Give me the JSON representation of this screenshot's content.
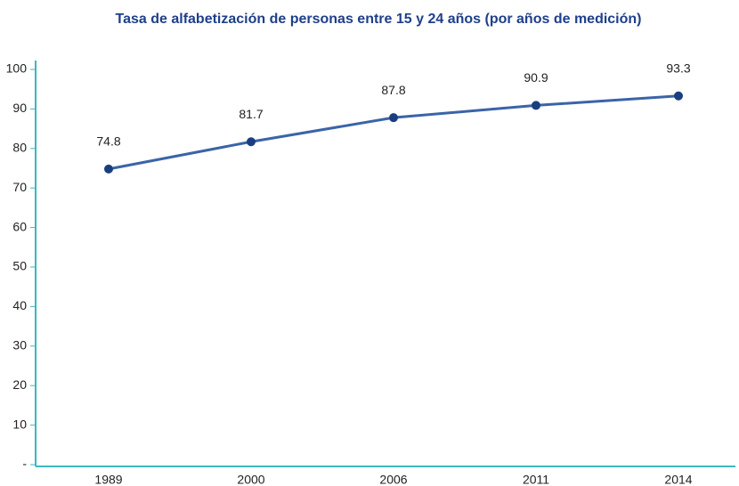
{
  "chart_data": {
    "type": "line",
    "title": "Tasa de alfabetización de personas entre 15 y 24 años (por años de medición)",
    "categories": [
      "1989",
      "2000",
      "2006",
      "2011",
      "2014"
    ],
    "series": [
      {
        "name": "Tasa de alfabetización",
        "color": "#3b64a8",
        "values": [
          74.8,
          81.7,
          87.8,
          90.9,
          93.3
        ]
      }
    ],
    "ylim": [
      0,
      100
    ],
    "yticks": [
      {
        "value": 0,
        "label": "-"
      },
      10,
      20,
      30,
      40,
      50,
      60,
      70,
      80,
      90,
      100
    ]
  }
}
